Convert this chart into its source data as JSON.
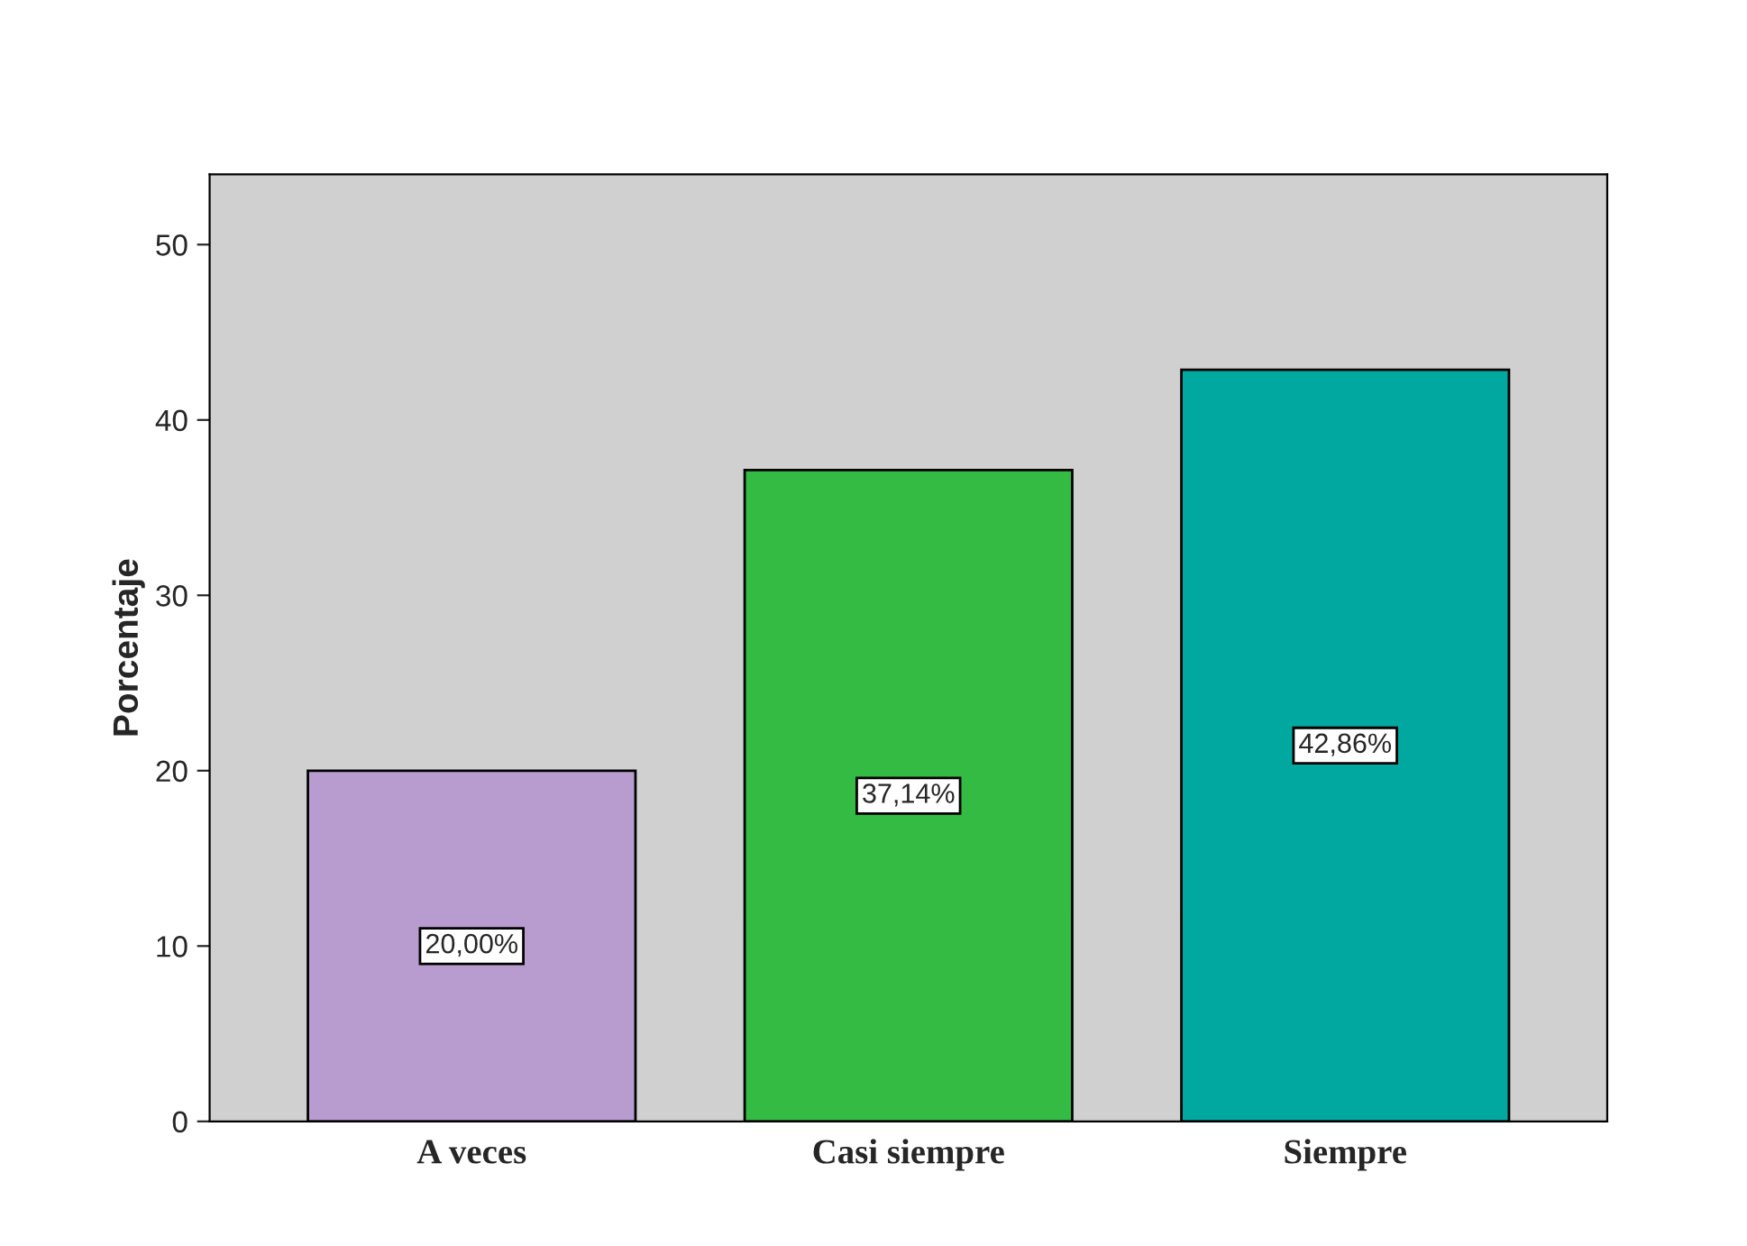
{
  "chart_data": {
    "type": "bar",
    "ylabel": "Porcentaje",
    "categories": [
      "A veces",
      "Casi siempre",
      "Siempre"
    ],
    "values": [
      20.0,
      37.14,
      42.86
    ],
    "colors": [
      "#b89ccf",
      "#33bb44",
      "#00a8a0"
    ],
    "value_labels": [
      "20,00%",
      "37,14%",
      "42,86%"
    ],
    "ylim": [
      0,
      54
    ],
    "yticks": [
      0,
      10,
      20,
      30,
      40,
      50
    ]
  }
}
